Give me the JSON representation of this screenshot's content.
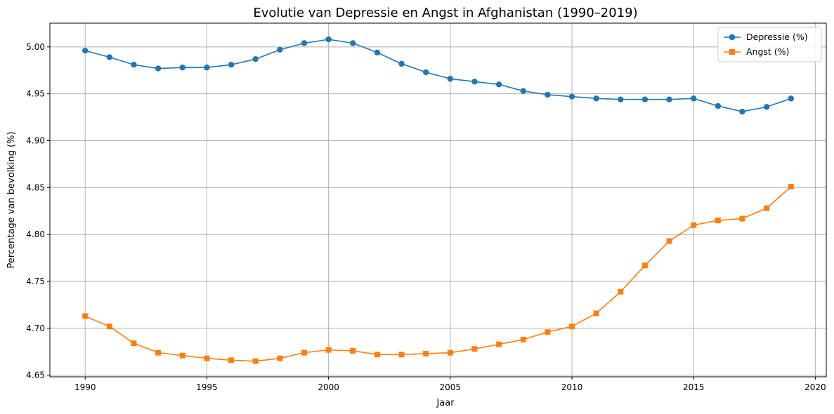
{
  "chart_data": {
    "type": "line",
    "title": "Evolutie van Depressie en Angst in Afghanistan (1990–2019)",
    "xlabel": "Jaar",
    "ylabel": "Percentage van bevolking (%)",
    "xlim": [
      1988.55,
      2020.45
    ],
    "ylim": [
      4.6483,
      5.0253
    ],
    "xticks": [
      1990,
      1995,
      2000,
      2005,
      2010,
      2015,
      2020
    ],
    "yticks": [
      4.65,
      4.7,
      4.75,
      4.8,
      4.85,
      4.9,
      4.95,
      5.0
    ],
    "ytick_labels": [
      "4.65",
      "4.70",
      "4.75",
      "4.80",
      "4.85",
      "4.90",
      "4.95",
      "5.00"
    ],
    "grid": true,
    "legend_position": "top-right",
    "x": [
      1990,
      1991,
      1992,
      1993,
      1994,
      1995,
      1996,
      1997,
      1998,
      1999,
      2000,
      2001,
      2002,
      2003,
      2004,
      2005,
      2006,
      2007,
      2008,
      2009,
      2010,
      2011,
      2012,
      2013,
      2014,
      2015,
      2016,
      2017,
      2018,
      2019
    ],
    "series": [
      {
        "name": "Depressie (%)",
        "color": "#1f77b4",
        "marker": "circle",
        "values": [
          4.996,
          4.989,
          4.981,
          4.977,
          4.978,
          4.978,
          4.981,
          4.987,
          4.997,
          5.004,
          5.008,
          5.004,
          4.994,
          4.982,
          4.973,
          4.966,
          4.963,
          4.96,
          4.953,
          4.949,
          4.947,
          4.945,
          4.944,
          4.944,
          4.944,
          4.945,
          4.937,
          4.931,
          4.936,
          4.945
        ]
      },
      {
        "name": "Angst (%)",
        "color": "#ff7f0e",
        "marker": "square",
        "values": [
          4.713,
          4.702,
          4.684,
          4.674,
          4.671,
          4.668,
          4.666,
          4.665,
          4.668,
          4.674,
          4.677,
          4.676,
          4.672,
          4.672,
          4.673,
          4.674,
          4.678,
          4.683,
          4.688,
          4.696,
          4.702,
          4.716,
          4.739,
          4.767,
          4.793,
          4.81,
          4.815,
          4.817,
          4.828,
          4.851
        ]
      }
    ]
  }
}
